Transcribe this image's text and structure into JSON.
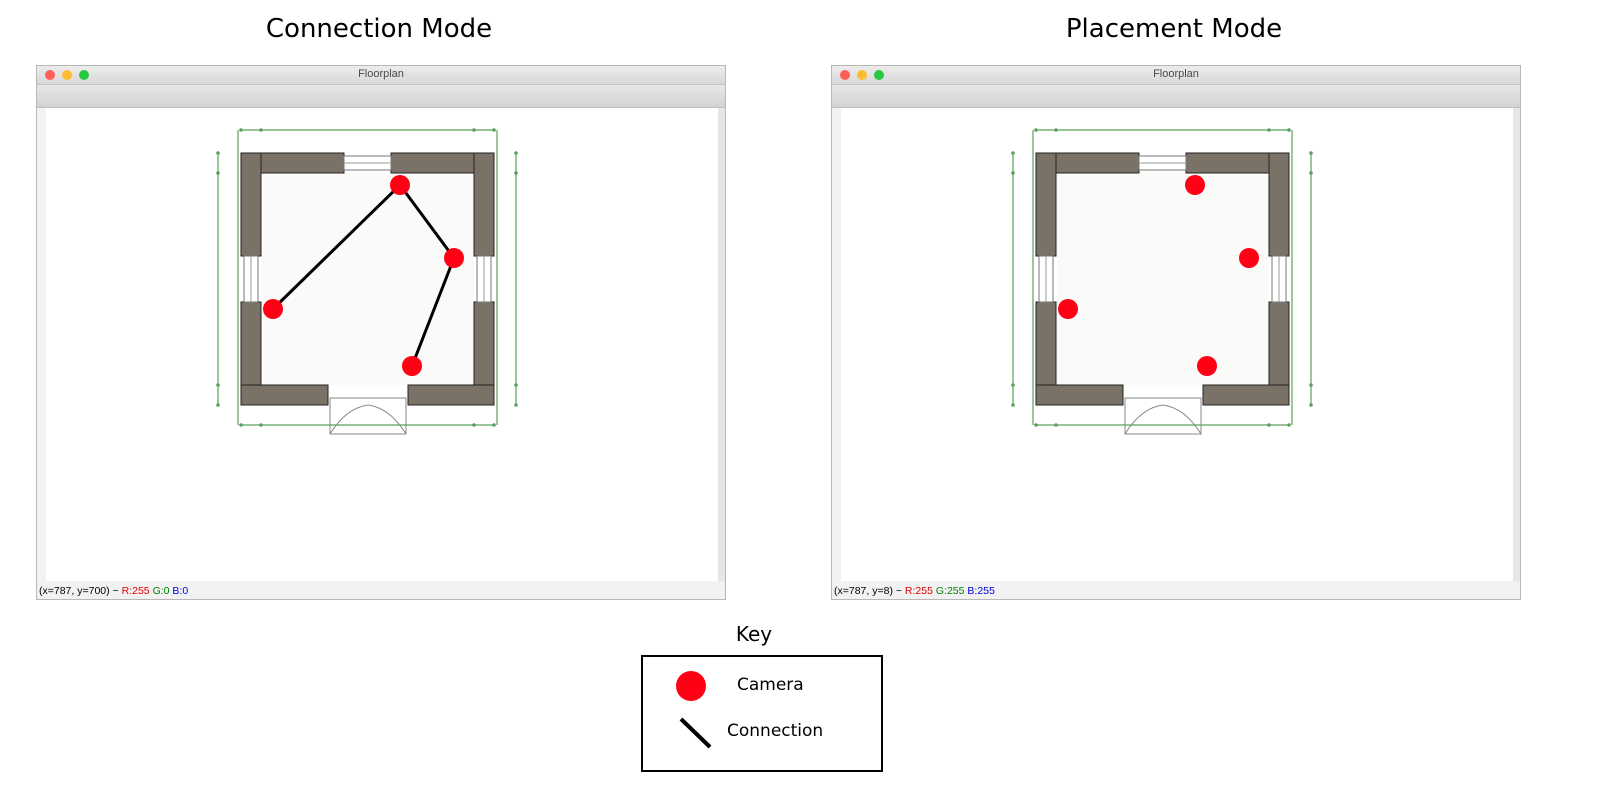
{
  "panels": [
    {
      "heading": "Connection Mode",
      "window_title": "Floorplan",
      "status": {
        "coords": "(x=787, y=700) ~",
        "r": "R:255",
        "g": "G:0",
        "b": "B:0"
      },
      "cameras": 4,
      "connections": 3
    },
    {
      "heading": "Placement Mode",
      "window_title": "Floorplan",
      "status": {
        "coords": "(x=787, y=8) ~",
        "r": "R:255",
        "g": "G:255",
        "b": "B:255"
      },
      "cameras": 4,
      "connections": 0
    }
  ],
  "key": {
    "title": "Key",
    "camera_label": "Camera",
    "connection_label": "Connection"
  },
  "colors": {
    "camera": "#ff0015",
    "wall": "#7a7267",
    "dimension": "#5aa05a",
    "status_r": "#e00000",
    "status_g": "#008000",
    "status_b": "#0000e0"
  },
  "icons": [
    "close-light-icon",
    "minimize-light-icon",
    "zoom-light-icon"
  ]
}
